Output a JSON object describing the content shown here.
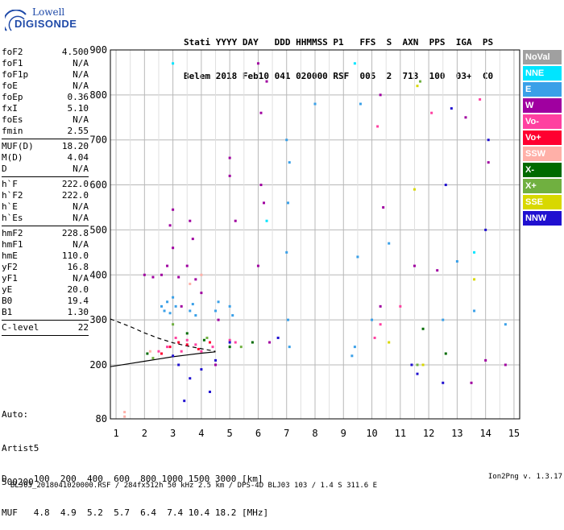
{
  "logo": {
    "line1": "Lowell",
    "line2": "DIGISONDE"
  },
  "header": {
    "line1": "Stati YYYY DAY   DDD HHMMSS P1   FFS  S  AXN  PPS  IGA  PS",
    "line2": "Belem 2018 Feb10 041 020000 RSF  005  2  713  100  03+  C0"
  },
  "params_group1": [
    {
      "key": "foF2",
      "val": "4.500"
    },
    {
      "key": "foF1",
      "val": "N/A"
    },
    {
      "key": "foF1p",
      "val": "N/A"
    },
    {
      "key": "foE",
      "val": "N/A"
    },
    {
      "key": "foEp",
      "val": "0.36"
    },
    {
      "key": "fxI",
      "val": "5.10"
    },
    {
      "key": "foEs",
      "val": "N/A"
    },
    {
      "key": "fmin",
      "val": "2.55"
    }
  ],
  "params_group2": [
    {
      "key": "MUF(D)",
      "val": "18.20"
    },
    {
      "key": "M(D)",
      "val": "4.04"
    },
    {
      "key": "D",
      "val": "N/A"
    }
  ],
  "params_group3": [
    {
      "key": "h`F",
      "val": "222.0"
    },
    {
      "key": "h`F2",
      "val": "222.0"
    },
    {
      "key": "h`E",
      "val": "N/A"
    },
    {
      "key": "h`Es",
      "val": "N/A"
    }
  ],
  "params_group4": [
    {
      "key": "hmF2",
      "val": "228.8"
    },
    {
      "key": "hmF1",
      "val": "N/A"
    },
    {
      "key": "hmE",
      "val": "110.0"
    },
    {
      "key": "yF2",
      "val": "16.8"
    },
    {
      "key": "yF1",
      "val": "N/A"
    },
    {
      "key": "yE",
      "val": "20.0"
    },
    {
      "key": "B0",
      "val": "19.4"
    },
    {
      "key": "B1",
      "val": "1.30"
    }
  ],
  "params_group5": [
    {
      "key": "C-level",
      "val": "22"
    }
  ],
  "auto": {
    "l1": "Auto:",
    "l2": "Artist5",
    "l3": "500200"
  },
  "legend": [
    {
      "label": "NoVal",
      "color": "#a0a0a0"
    },
    {
      "label": "NNE",
      "color": "#00e5ff"
    },
    {
      "label": "E",
      "color": "#3aa0e8"
    },
    {
      "label": "W",
      "color": "#a000a0"
    },
    {
      "label": "Vo-",
      "color": "#ff40a0"
    },
    {
      "label": "Vo+",
      "color": "#ff0030"
    },
    {
      "label": "SSW",
      "color": "#ffb0a8"
    },
    {
      "label": "X-",
      "color": "#006a00"
    },
    {
      "label": "X+",
      "color": "#70b040"
    },
    {
      "label": "SSE",
      "color": "#d8d800"
    },
    {
      "label": "NNW",
      "color": "#2010d0"
    }
  ],
  "footer": {
    "d_row": "D     100  200  400  600  800 1000 1500 3000 [km]",
    "muf_row": "MUF   4.8  4.9  5.2  5.7  6.4  7.4 10.4 18.2 [MHz]",
    "file": "BLJ03_2018041020000.RSF / 284fx512h 50 kHz 2.5 km / DPS-4D BLJ03 103 / 1.4 S 311.6 E",
    "version": "Ion2Png v. 1.3.17"
  },
  "chart_data": {
    "type": "scatter",
    "title": "",
    "xlabel": "",
    "ylabel": "",
    "xlim": [
      0.8,
      15.2
    ],
    "ylim": [
      80,
      900
    ],
    "xticks": [
      "1",
      "2",
      "3",
      "4",
      "5",
      "6",
      "7",
      "8",
      "9",
      "10",
      "11",
      "12",
      "13",
      "14",
      "15"
    ],
    "yticks": [
      "80",
      "200",
      "300",
      "400",
      "500",
      "600",
      "700",
      "800",
      "900"
    ],
    "grid": true,
    "series": [
      {
        "name": "E",
        "color": "#3aa0e8",
        "points": [
          [
            2.6,
            330
          ],
          [
            2.7,
            320
          ],
          [
            2.8,
            340
          ],
          [
            2.9,
            315
          ],
          [
            3.0,
            350
          ],
          [
            3.1,
            330
          ],
          [
            3.6,
            320
          ],
          [
            3.7,
            335
          ],
          [
            3.8,
            310
          ],
          [
            4.5,
            320
          ],
          [
            4.6,
            340
          ],
          [
            5.0,
            330
          ],
          [
            5.1,
            310
          ],
          [
            7.0,
            450
          ],
          [
            7.05,
            560
          ],
          [
            7.1,
            650
          ],
          [
            7.0,
            700
          ],
          [
            7.05,
            300
          ],
          [
            7.1,
            240
          ],
          [
            9.3,
            220
          ],
          [
            9.4,
            240
          ],
          [
            9.6,
            780
          ],
          [
            10.0,
            300
          ],
          [
            12.5,
            300
          ],
          [
            13.0,
            430
          ],
          [
            13.6,
            320
          ],
          [
            14.7,
            290
          ],
          [
            10.6,
            470
          ],
          [
            8.0,
            780
          ],
          [
            9.5,
            440
          ]
        ]
      },
      {
        "name": "W",
        "color": "#a000a0",
        "points": [
          [
            2.0,
            400
          ],
          [
            2.3,
            395
          ],
          [
            2.6,
            400
          ],
          [
            2.8,
            420
          ],
          [
            2.9,
            510
          ],
          [
            3.0,
            460
          ],
          [
            3.0,
            545
          ],
          [
            3.2,
            395
          ],
          [
            3.3,
            330
          ],
          [
            3.5,
            420
          ],
          [
            3.6,
            520
          ],
          [
            3.7,
            480
          ],
          [
            3.8,
            390
          ],
          [
            4.0,
            360
          ],
          [
            4.6,
            300
          ],
          [
            4.5,
            200
          ],
          [
            5.2,
            520
          ],
          [
            5.0,
            620
          ],
          [
            5.0,
            660
          ],
          [
            6.0,
            870
          ],
          [
            6.1,
            760
          ],
          [
            6.3,
            830
          ],
          [
            6.1,
            600
          ],
          [
            6.2,
            560
          ],
          [
            6.0,
            420
          ],
          [
            6.4,
            250
          ],
          [
            10.3,
            800
          ],
          [
            10.4,
            550
          ],
          [
            10.3,
            330
          ],
          [
            11.5,
            420
          ],
          [
            13.3,
            750
          ],
          [
            14.1,
            650
          ],
          [
            14.7,
            200
          ],
          [
            12.3,
            410
          ],
          [
            14.0,
            210
          ],
          [
            13.5,
            160
          ]
        ]
      },
      {
        "name": "Vo-",
        "color": "#ff40a0",
        "points": [
          [
            2.5,
            230
          ],
          [
            2.8,
            240
          ],
          [
            3.1,
            260
          ],
          [
            3.3,
            230
          ],
          [
            3.5,
            255
          ],
          [
            3.8,
            245
          ],
          [
            4.0,
            230
          ],
          [
            4.4,
            240
          ],
          [
            5.0,
            255
          ],
          [
            5.2,
            250
          ],
          [
            10.1,
            260
          ],
          [
            10.3,
            290
          ],
          [
            10.2,
            730
          ],
          [
            12.1,
            760
          ],
          [
            11.0,
            330
          ],
          [
            13.8,
            790
          ]
        ]
      },
      {
        "name": "Vo+",
        "color": "#ff0030",
        "points": [
          [
            2.6,
            225
          ],
          [
            2.9,
            240
          ],
          [
            3.2,
            250
          ],
          [
            3.5,
            245
          ],
          [
            3.9,
            235
          ],
          [
            4.3,
            250
          ]
        ]
      },
      {
        "name": "NNW",
        "color": "#2010d0",
        "points": [
          [
            3.0,
            220
          ],
          [
            3.2,
            200
          ],
          [
            3.4,
            120
          ],
          [
            3.6,
            170
          ],
          [
            4.0,
            190
          ],
          [
            4.3,
            140
          ],
          [
            4.5,
            210
          ],
          [
            5.0,
            250
          ],
          [
            6.7,
            260
          ],
          [
            11.4,
            200
          ],
          [
            11.6,
            180
          ],
          [
            12.5,
            160
          ],
          [
            12.6,
            600
          ],
          [
            12.8,
            770
          ],
          [
            14.0,
            500
          ],
          [
            14.1,
            700
          ]
        ]
      },
      {
        "name": "X-",
        "color": "#006a00",
        "points": [
          [
            2.1,
            225
          ],
          [
            3.5,
            270
          ],
          [
            4.1,
            255
          ],
          [
            5.0,
            240
          ],
          [
            5.8,
            250
          ],
          [
            12.6,
            225
          ],
          [
            11.8,
            280
          ]
        ]
      },
      {
        "name": "X+",
        "color": "#70b040",
        "points": [
          [
            2.3,
            215
          ],
          [
            3.0,
            290
          ],
          [
            4.2,
            260
          ],
          [
            5.4,
            240
          ],
          [
            11.6,
            200
          ],
          [
            11.7,
            830
          ]
        ]
      },
      {
        "name": "SSE",
        "color": "#d8d800",
        "points": [
          [
            11.6,
            820
          ],
          [
            11.5,
            590
          ],
          [
            10.6,
            250
          ],
          [
            13.6,
            390
          ],
          [
            11.8,
            200
          ]
        ]
      },
      {
        "name": "SSW",
        "color": "#ffb0a8",
        "points": [
          [
            1.3,
            85
          ],
          [
            1.3,
            95
          ],
          [
            2.2,
            230
          ],
          [
            3.6,
            380
          ],
          [
            4.0,
            400
          ]
        ]
      },
      {
        "name": "NNE",
        "color": "#00e5ff",
        "points": [
          [
            3.0,
            870
          ],
          [
            6.3,
            520
          ],
          [
            9.4,
            870
          ],
          [
            13.6,
            450
          ]
        ]
      }
    ],
    "curves": [
      {
        "name": "solid",
        "style": "solid",
        "points": [
          [
            0.8,
            196
          ],
          [
            1.5,
            203
          ],
          [
            2.0,
            208
          ],
          [
            2.5,
            213
          ],
          [
            3.0,
            218
          ],
          [
            3.5,
            222
          ],
          [
            4.0,
            226
          ],
          [
            4.5,
            229
          ]
        ]
      },
      {
        "name": "dashed",
        "style": "dashed",
        "points": [
          [
            0.8,
            302
          ],
          [
            1.5,
            285
          ],
          [
            2.0,
            271
          ],
          [
            2.5,
            259
          ],
          [
            3.0,
            249
          ],
          [
            3.5,
            242
          ],
          [
            4.0,
            236
          ],
          [
            4.5,
            230
          ]
        ]
      }
    ]
  }
}
